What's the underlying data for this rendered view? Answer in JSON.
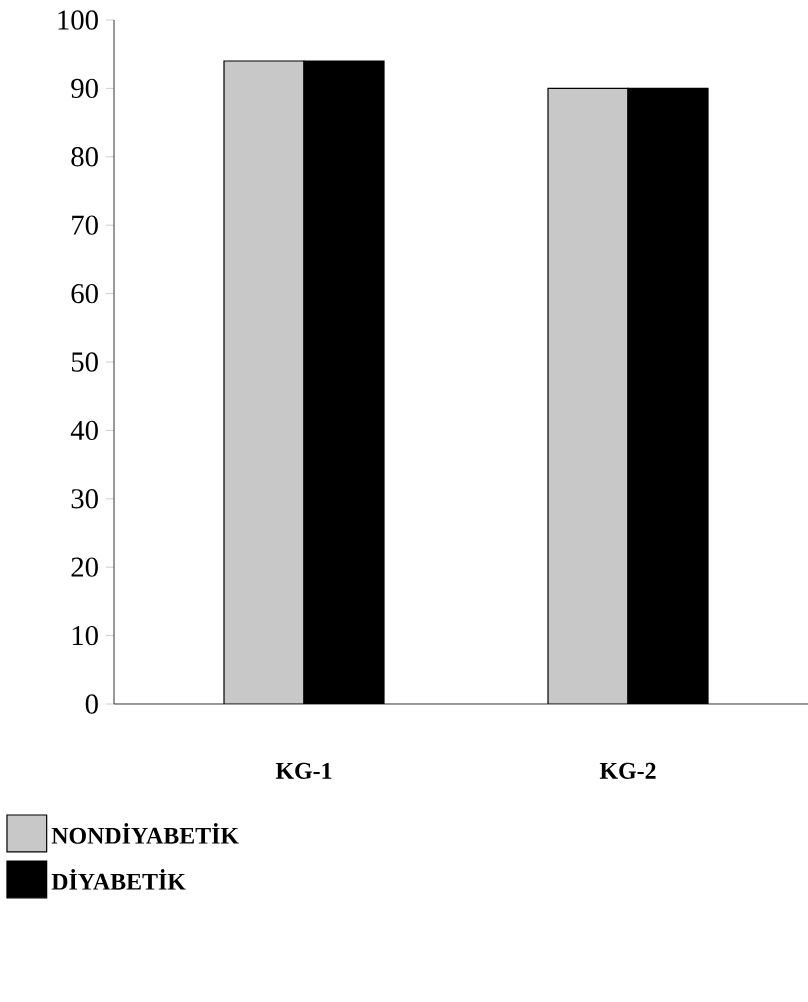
{
  "chart_data": {
    "type": "bar",
    "categories": [
      "KG-1",
      "KG-2"
    ],
    "series": [
      {
        "name": "NONDİYABETİK",
        "color": "#c8c8c8",
        "values": [
          94,
          90
        ]
      },
      {
        "name": "DİYABETİK",
        "color": "#000000",
        "values": [
          94,
          90
        ]
      }
    ],
    "ylim": [
      0,
      100
    ],
    "yticks": [
      0,
      10,
      20,
      30,
      40,
      50,
      60,
      70,
      80,
      90,
      100
    ],
    "legend": "bottom left",
    "grid": false
  }
}
